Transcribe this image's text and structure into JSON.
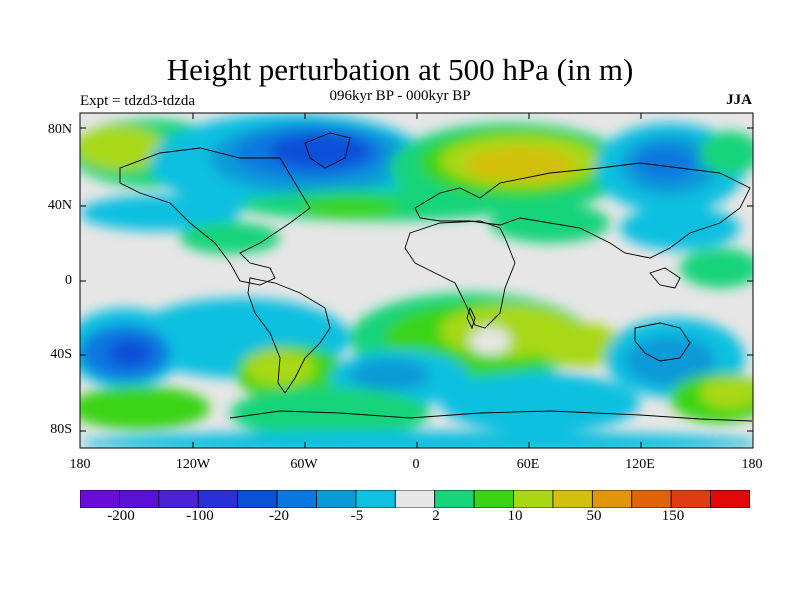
{
  "title": "Height perturbation at 500 hPa (in m)",
  "subtitle": "096kyr BP - 000kyr BP",
  "expt_label": "Expt = tdzd3-tdzda",
  "season": "JJA",
  "map": {
    "projection": "cylindrical equidistant",
    "lat_ticks": [
      "80N",
      "40N",
      "0",
      "40S",
      "80S"
    ],
    "lon_ticks": [
      "180",
      "120W",
      "60W",
      "0",
      "60E",
      "120E",
      "180"
    ]
  },
  "colorbar": {
    "colors": [
      "#6a0dd8",
      "#5a10d6",
      "#4a22d8",
      "#2a30d8",
      "#0a50d8",
      "#0a78e0",
      "#0a9ad8",
      "#10c0e0",
      "#e6e6e6",
      "#18d47a",
      "#3ad414",
      "#a8d814",
      "#d2c00a",
      "#e0960a",
      "#e0640a",
      "#e03c14",
      "#e00808"
    ],
    "labels": [
      "-200",
      "-100",
      "-20",
      "-5",
      "2",
      "10",
      "50",
      "150"
    ]
  },
  "colors": {
    "light_blue": "#10c0e0",
    "mid_blue": "#0a9ad8",
    "blue": "#0a78e0",
    "dark_blue": "#0a50d8",
    "cyan_green": "#18d47a",
    "green": "#3ad414",
    "yellow_green": "#a8d814",
    "gold": "#d2c00a",
    "grey": "#e6e6e6"
  }
}
